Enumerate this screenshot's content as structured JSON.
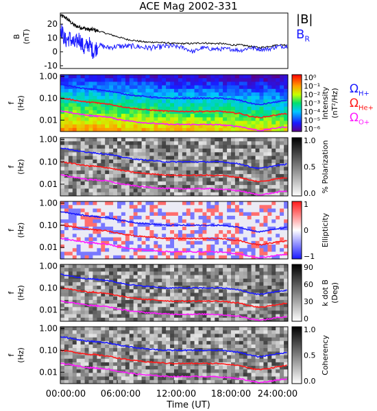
{
  "title": "ACE Mag 2002-331",
  "legend": {
    "b_label": "|B|",
    "br_label": "B",
    "br_sub": "R",
    "b_color": "#000000",
    "br_color": "#1a1aff"
  },
  "gyro_labels": [
    {
      "sym": "Ω",
      "sub": "H+",
      "color": "#1a1aff"
    },
    {
      "sym": "Ω",
      "sub": "He+",
      "color": "#ff1a1a"
    },
    {
      "sym": "Ω",
      "sub": "O+",
      "color": "#ff1aff"
    }
  ],
  "x_axis": {
    "label": "Time (UT)",
    "ticks": [
      "00:00:00",
      "06:00:00",
      "12:00:00",
      "18:00:00",
      "24:00:00"
    ],
    "range_hours": [
      0,
      24
    ]
  },
  "chart_data": [
    {
      "type": "line",
      "panel": "field",
      "ylabel": "B",
      "yunit": "(nT)",
      "ylim": [
        -12,
        28
      ],
      "yticks": [
        "20",
        "10",
        "0",
        "-10"
      ],
      "yticks_values": [
        20,
        10,
        0,
        -10
      ],
      "series": [
        {
          "name": "|B|",
          "color": "#000000",
          "x": [
            0,
            0.5,
            1,
            1.5,
            2,
            2.5,
            3,
            3.5,
            4,
            5,
            6,
            7,
            8,
            9,
            10,
            11,
            12,
            13,
            14,
            15,
            16,
            17,
            18,
            19,
            20,
            21,
            22,
            23,
            24
          ],
          "y": [
            26,
            25,
            22,
            19,
            18,
            17,
            16,
            16,
            15,
            13,
            11,
            9,
            8,
            7,
            7,
            6.5,
            6,
            6,
            6,
            6.5,
            6,
            6,
            5,
            5,
            4,
            3,
            4,
            5,
            5
          ]
        },
        {
          "name": "B",
          "color": "#1a1aff",
          "x": [
            0,
            0.5,
            1,
            1.5,
            2,
            2.5,
            3,
            3.5,
            4,
            5,
            6,
            7,
            8,
            9,
            10,
            11,
            12,
            13,
            14,
            15,
            16,
            17,
            18,
            19,
            20,
            21,
            22,
            23,
            24
          ],
          "y": [
            18,
            8,
            10,
            5,
            10,
            2,
            6,
            0,
            5,
            3,
            4,
            4,
            4,
            3,
            3,
            4,
            4,
            3,
            0,
            3,
            2,
            2,
            2,
            1,
            3,
            2,
            2,
            4,
            4
          ]
        }
      ]
    },
    {
      "type": "heatmap",
      "panel": "intensity",
      "ylabel": "f",
      "yunit": "(Hz)",
      "yticks": [
        "1.00",
        "0.10",
        "0.01"
      ],
      "ylim": [
        0.003,
        1.2
      ],
      "yscale": "log",
      "colorbar": {
        "label": "Intensity",
        "unit": "(nT²/Hz)",
        "ticks": [
          "10⁰",
          "10⁻¹",
          "10⁻²",
          "10⁻³",
          "10⁻⁴",
          "10⁻⁵",
          "10⁻⁶"
        ],
        "scale": "rainbow"
      }
    },
    {
      "type": "heatmap",
      "panel": "polarization",
      "ylabel": "f",
      "yunit": "(Hz)",
      "yticks": [
        "1.00",
        "0.10",
        "0.01"
      ],
      "ylim": [
        0.003,
        1.2
      ],
      "yscale": "log",
      "colorbar": {
        "label": "% Polarization",
        "unit": "",
        "ticks": [
          "1.0",
          "0.5",
          "0.0"
        ],
        "scale": "gray"
      }
    },
    {
      "type": "heatmap",
      "panel": "ellipticity",
      "ylabel": "f",
      "yunit": "(Hz)",
      "yticks": [
        "1.00",
        "0.10",
        "0.01"
      ],
      "ylim": [
        0.003,
        1.2
      ],
      "yscale": "log",
      "colorbar": {
        "label": "Ellipticity",
        "unit": "",
        "ticks": [
          "1",
          "0",
          "−1"
        ],
        "scale": "bwr"
      }
    },
    {
      "type": "heatmap",
      "panel": "kdotb",
      "ylabel": "f",
      "yunit": "(Hz)",
      "yticks": [
        "1.00",
        "0.10",
        "0.01"
      ],
      "ylim": [
        0.003,
        1.2
      ],
      "yscale": "log",
      "colorbar": {
        "label": "k dot B",
        "unit": "(Deg)",
        "ticks": [
          "90",
          "60",
          "30",
          "0"
        ],
        "scale": "gray"
      }
    },
    {
      "type": "heatmap",
      "panel": "coherency",
      "ylabel": "f",
      "yunit": "(Hz)",
      "yticks": [
        "1.00",
        "0.10",
        "0.01"
      ],
      "ylim": [
        0.003,
        1.2
      ],
      "yscale": "log",
      "colorbar": {
        "label": "Coherency",
        "unit": "",
        "ticks": [
          "1.0",
          "0.5",
          "0.0"
        ],
        "scale": "gray"
      }
    }
  ],
  "gyrofrequency_curves": {
    "x": [
      0,
      1,
      2,
      3,
      3.5,
      4,
      5,
      6,
      7,
      8,
      9,
      10,
      11,
      12,
      13,
      14,
      15,
      16,
      17,
      18,
      19,
      20,
      21,
      22,
      23,
      24
    ],
    "H": [
      0.42,
      0.36,
      0.3,
      0.26,
      0.26,
      0.24,
      0.22,
      0.18,
      0.15,
      0.13,
      0.12,
      0.11,
      0.1,
      0.1,
      0.1,
      0.1,
      0.1,
      0.1,
      0.1,
      0.09,
      0.08,
      0.06,
      0.05,
      0.06,
      0.07,
      0.08
    ],
    "He": [
      0.1,
      0.09,
      0.075,
      0.065,
      0.065,
      0.06,
      0.055,
      0.045,
      0.038,
      0.033,
      0.03,
      0.028,
      0.026,
      0.025,
      0.025,
      0.025,
      0.025,
      0.025,
      0.025,
      0.022,
      0.02,
      0.015,
      0.013,
      0.015,
      0.018,
      0.02
    ],
    "O": [
      0.026,
      0.022,
      0.019,
      0.016,
      0.016,
      0.015,
      0.014,
      0.011,
      0.0095,
      0.0083,
      0.0075,
      0.007,
      0.0065,
      0.0063,
      0.0063,
      0.0063,
      0.0063,
      0.0063,
      0.006,
      0.0055,
      0.005,
      0.004,
      0.0033,
      0.0038,
      0.0045,
      0.005
    ]
  }
}
